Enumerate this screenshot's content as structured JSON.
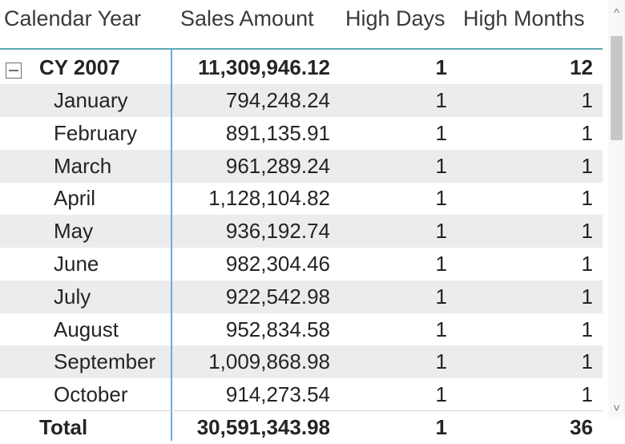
{
  "columns": {
    "calendar_year": "Calendar Year",
    "sales_amount": "Sales Amount",
    "high_days": "High Days",
    "high_months": "High Months"
  },
  "group": {
    "label": "CY 2007",
    "sales": "11,309,946.12",
    "high_days": "1",
    "high_months": "12",
    "expanded": true
  },
  "rows": [
    {
      "label": "January",
      "sales": "794,248.24",
      "high_days": "1",
      "high_months": "1"
    },
    {
      "label": "February",
      "sales": "891,135.91",
      "high_days": "1",
      "high_months": "1"
    },
    {
      "label": "March",
      "sales": "961,289.24",
      "high_days": "1",
      "high_months": "1"
    },
    {
      "label": "April",
      "sales": "1,128,104.82",
      "high_days": "1",
      "high_months": "1"
    },
    {
      "label": "May",
      "sales": "936,192.74",
      "high_days": "1",
      "high_months": "1"
    },
    {
      "label": "June",
      "sales": "982,304.46",
      "high_days": "1",
      "high_months": "1"
    },
    {
      "label": "July",
      "sales": "922,542.98",
      "high_days": "1",
      "high_months": "1"
    },
    {
      "label": "August",
      "sales": "952,834.58",
      "high_days": "1",
      "high_months": "1"
    },
    {
      "label": "September",
      "sales": "1,009,868.98",
      "high_days": "1",
      "high_months": "1"
    },
    {
      "label": "October",
      "sales": "914,273.54",
      "high_days": "1",
      "high_months": "1"
    }
  ],
  "total": {
    "label": "Total",
    "sales": "30,591,343.98",
    "high_days": "1",
    "high_months": "36"
  },
  "scrollbar": {
    "up_icon": "^",
    "down_icon": "˅"
  },
  "colors": {
    "header_rule": "#5ba8b5",
    "row_separator": "#6fa9db",
    "alt_row": "#ececec"
  }
}
